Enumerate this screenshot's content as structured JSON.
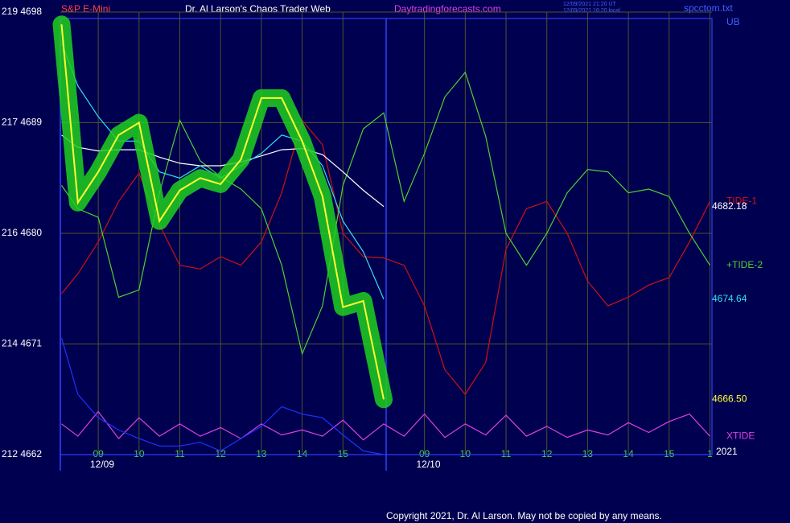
{
  "chart_data": {
    "type": "line",
    "symbol": "S&P E-Mini",
    "title": "Dr. Al Larson's Chaos Trader Web",
    "site": "Daytradingforecasts.com",
    "timestamp": [
      "12/09/2021 21:20 UT",
      "12/09/2021 16:20 local"
    ],
    "file": "spcctom.txt",
    "copyright": "Copyright 2021, Dr. Al Larson. May not be copied by any means.",
    "corner_labels": [
      "UB",
      "2021"
    ],
    "ylim": [
      4662,
      4698
    ],
    "yticks": [
      {
        "value": 4698,
        "label": "219 4698"
      },
      {
        "value": 4689,
        "label": "217 4689"
      },
      {
        "value": 4680,
        "label": "216 4680"
      },
      {
        "value": 4671,
        "label": "214 4671"
      },
      {
        "value": 4662,
        "label": "212 4662"
      }
    ],
    "xlim": [
      8.07,
      24.05
    ],
    "xticks": [
      {
        "value": 9,
        "label": "09"
      },
      {
        "value": 10,
        "label": "10"
      },
      {
        "value": 11,
        "label": "11"
      },
      {
        "value": 12,
        "label": "12"
      },
      {
        "value": 13,
        "label": "13"
      },
      {
        "value": 14,
        "label": "14"
      },
      {
        "value": 15,
        "label": "15"
      },
      {
        "value": 17,
        "label": "09"
      },
      {
        "value": 18,
        "label": "10"
      },
      {
        "value": 19,
        "label": "11"
      },
      {
        "value": 20,
        "label": "12"
      },
      {
        "value": 21,
        "label": "13"
      },
      {
        "value": 22,
        "label": "14"
      },
      {
        "value": 23,
        "label": "15"
      },
      {
        "value": 24,
        "label": "1"
      }
    ],
    "date_labels": [
      {
        "value": 8.8,
        "label": "12/09"
      },
      {
        "value": 16.8,
        "label": "12/10"
      }
    ],
    "day_breaks": [
      8.07,
      16.06
    ],
    "grid": true,
    "x": [
      8.1,
      8.5,
      9,
      9.5,
      10,
      10.5,
      11,
      11.5,
      12,
      12.5,
      13,
      13.5,
      14,
      14.5,
      15,
      15.5,
      16,
      16.5,
      17,
      17.5,
      18,
      18.5,
      19,
      19.5,
      20,
      20.5,
      21,
      21.5,
      22,
      22.5,
      23,
      23.5,
      24
    ],
    "series": [
      {
        "name": "TIDE-1",
        "color": "#d01010",
        "values": [
          4675.1,
          4676.7,
          4679.3,
          4682.6,
          4684.9,
          4680.7,
          4677.4,
          4677.1,
          4678.1,
          4677.4,
          4679.3,
          4683.3,
          4689.2,
          4687.2,
          4680,
          4678.1,
          4678,
          4677.4,
          4674.1,
          4668.9,
          4666.9,
          4669.5,
          4678.7,
          4682,
          4682.6,
          4680,
          4676.1,
          4674.1,
          4674.8,
          4675.8,
          4676.4,
          4679.3,
          4682.6
        ]
      },
      {
        "name": "+TIDE-2",
        "color": "#50d030",
        "values": [
          4683.9,
          4682,
          4681.3,
          4674.8,
          4675.4,
          4683.3,
          4689.2,
          4685.9,
          4684.6,
          4683.6,
          4682,
          4677.4,
          4670.2,
          4674.1,
          4683.9,
          4688.5,
          4689.8,
          4682.6,
          4686.5,
          4691.1,
          4693.1,
          4687.9,
          4680,
          4677.4,
          4680,
          4683.3,
          4685.2,
          4685,
          4683.3,
          4683.6,
          4683,
          4680,
          4677.4
        ]
      },
      {
        "name": "XTIDE",
        "color": "#e040e0",
        "values": [
          4664.5,
          4663.5,
          4665.5,
          4663.3,
          4665,
          4663.5,
          4664.5,
          4663.5,
          4664.2,
          4663.3,
          4664.5,
          4663.6,
          4664,
          4663.5,
          4664.8,
          4663.2,
          4664.5,
          4663.5,
          4665.3,
          4663.4,
          4664.5,
          4663.6,
          4665.2,
          4663.5,
          4664.3,
          4663.4,
          4664,
          4663.6,
          4664.6,
          4663.8,
          4664.7,
          4665.3,
          4663.5
        ]
      },
      {
        "color": "#2030ff",
        "values": [
          4671.5,
          4666.9,
          4665,
          4664,
          4663.3,
          4662.7,
          4662.7,
          4663,
          4662.3,
          4663.3,
          4664.3,
          4665.9,
          4665.3,
          4665,
          4663.6,
          4662.3,
          4662,
          null,
          null,
          null,
          null,
          null,
          null,
          null,
          null,
          null,
          null,
          null,
          null,
          null,
          null,
          null,
          null
        ]
      },
      {
        "color": "#ffffff",
        "values": [
          4688,
          4687,
          4686.7,
          4686.8,
          4686.8,
          4686.2,
          4685.7,
          4685.5,
          4685.5,
          4685.8,
          4686.3,
          4686.8,
          4686.9,
          4686.4,
          4685,
          4683.5,
          4682.18,
          null,
          null,
          null,
          null,
          null,
          null,
          null,
          null,
          null,
          null,
          null,
          null,
          null,
          null,
          null,
          null
        ]
      },
      {
        "color": "#30e0f0",
        "values": [
          4695.5,
          4692,
          4689.5,
          4687.5,
          4687.5,
          4685,
          4684.5,
          4685.5,
          4684.5,
          4685.5,
          4686.5,
          4688,
          4687.5,
          4685.5,
          4681,
          4678.5,
          4674.64,
          null,
          null,
          null,
          null,
          null,
          null,
          null,
          null,
          null,
          null,
          null,
          null,
          null,
          null,
          null,
          null
        ]
      },
      {
        "color": "#ffff30",
        "band": "#20d020",
        "values": [
          4697,
          4682.5,
          4685,
          4688,
          4689,
          4681,
          4683.5,
          4684.5,
          4684,
          4686,
          4691,
          4691,
          4687.5,
          4683,
          4674,
          4674.5,
          4666.5,
          null,
          null,
          null,
          null,
          null,
          null,
          null,
          null,
          null,
          null,
          null,
          null,
          null,
          null,
          null,
          null
        ]
      }
    ],
    "right_labels": [
      {
        "value": 4682.18,
        "label": "4682.18",
        "color": "#ffffff"
      },
      {
        "value": 4674.64,
        "label": "4674.64",
        "color": "#30e0f0"
      },
      {
        "value": 4666.5,
        "label": "4666.50",
        "color": "#ffff30"
      }
    ]
  }
}
